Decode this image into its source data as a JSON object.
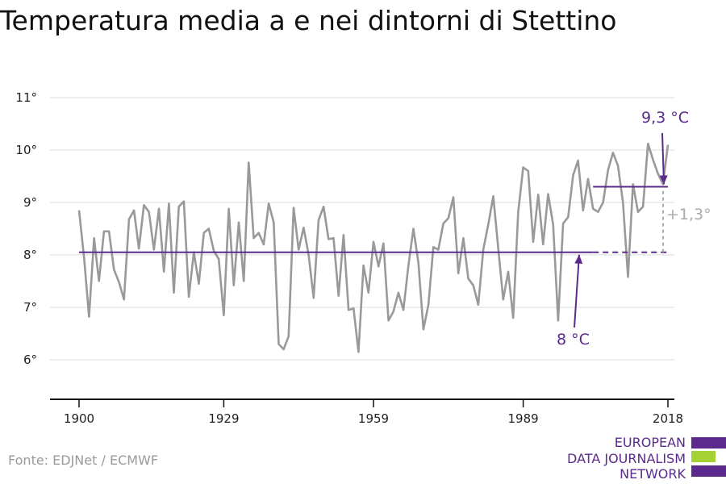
{
  "page": {
    "title": "Temperatura media a e nei dintorni di Stettino",
    "source": "Fonte: EDJNet / ECMWF"
  },
  "logo": {
    "lines": [
      "EUROPEAN",
      "DATA JOURNALISM",
      "NETWORK"
    ],
    "colors": [
      "#5b2a8c",
      "#a4d233",
      "#5b2a8c"
    ]
  },
  "colors": {
    "series": "#999999",
    "accent": "#5b2a8c",
    "diff": "#aaaaaa"
  },
  "chart_data": {
    "type": "line",
    "x_tick_labels": [
      "1900",
      "1929",
      "1959",
      "1989",
      "2018"
    ],
    "x_ticks": [
      1900,
      1929,
      1959,
      1989,
      2018
    ],
    "y_tick_labels": [
      "6°",
      "7°",
      "8°",
      "9°",
      "10°",
      "11°"
    ],
    "y_ticks": [
      6,
      7,
      8,
      9,
      10,
      11
    ],
    "xlim": [
      1900,
      2018
    ],
    "ylim": [
      5.2,
      11.4
    ],
    "grid": true,
    "series": [
      {
        "x_start": 1900,
        "values": [
          8.85,
          7.95,
          6.82,
          8.32,
          7.5,
          8.45,
          8.45,
          7.72,
          7.48,
          7.15,
          8.68,
          8.85,
          8.12,
          8.95,
          8.82,
          8.1,
          8.88,
          7.68,
          8.98,
          7.28,
          8.92,
          9.02,
          7.2,
          8.05,
          7.45,
          8.42,
          8.5,
          8.08,
          7.92,
          6.85,
          8.88,
          7.42,
          8.62,
          7.5,
          9.76,
          8.32,
          8.42,
          8.2,
          8.98,
          8.62,
          6.3,
          6.2,
          6.45,
          8.9,
          8.1,
          8.52,
          8.0,
          7.18,
          8.66,
          8.92,
          8.3,
          8.32,
          7.22,
          8.38,
          6.95,
          6.98,
          6.15,
          7.8,
          7.28,
          8.25,
          7.78,
          8.22,
          6.75,
          6.92,
          7.28,
          6.95,
          7.8,
          8.5,
          7.85,
          6.58,
          7.05,
          8.15,
          8.1,
          8.6,
          8.7,
          9.1,
          7.65,
          8.32,
          7.55,
          7.42,
          7.05,
          8.1,
          8.58,
          9.12,
          8.12,
          7.15,
          7.68,
          6.8,
          8.82,
          9.67,
          9.6,
          8.25,
          9.15,
          8.2,
          9.16,
          8.58,
          6.75,
          8.6,
          8.72,
          9.52,
          9.8,
          8.85,
          9.45,
          8.88,
          8.82,
          9.0,
          9.62,
          9.95,
          9.7,
          9.0,
          7.58,
          9.35,
          8.82,
          8.92,
          10.12,
          9.82,
          9.55,
          9.35,
          10.1
        ]
      }
    ],
    "annotations": [
      {
        "type": "mean_line",
        "label": "8 °C",
        "value": 8.05,
        "from": 1900,
        "to": 2003
      },
      {
        "type": "mean_line_projection",
        "value": 8.05,
        "from": 2003,
        "to": 2018
      },
      {
        "type": "mean_line",
        "label": "9,3 °C",
        "value": 9.3,
        "from": 2003,
        "to": 2018
      },
      {
        "type": "difference",
        "label": "+1,3°",
        "from_value": 8.05,
        "to_value": 9.3,
        "at": 2018
      }
    ]
  }
}
